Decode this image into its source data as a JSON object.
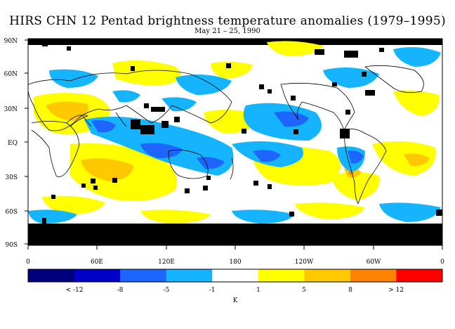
{
  "title": "HIRS CHN 12 Pentad brightness temperature anomalies (1979–1995)",
  "subtitle": "May 21 – 25, 1990",
  "map": {
    "lat_labels": [
      "90N",
      "60N",
      "30N",
      "EQ",
      "30S",
      "60S",
      "90S"
    ],
    "lon_labels": [
      "0",
      "60E",
      "120E",
      "180",
      "120W",
      "60W",
      "0"
    ],
    "missing_color": "#000000"
  },
  "colorbar": {
    "colors": [
      "#00007f",
      "#0000c8",
      "#1e64ff",
      "#14b4ff",
      "#ffffff",
      "#ffff00",
      "#ffc800",
      "#ff8200",
      "#ff0000"
    ],
    "tick_labels": [
      "< -12",
      "-8",
      "-5",
      "-1",
      "1",
      "5",
      "8",
      "> 12"
    ],
    "unit": "K"
  }
}
